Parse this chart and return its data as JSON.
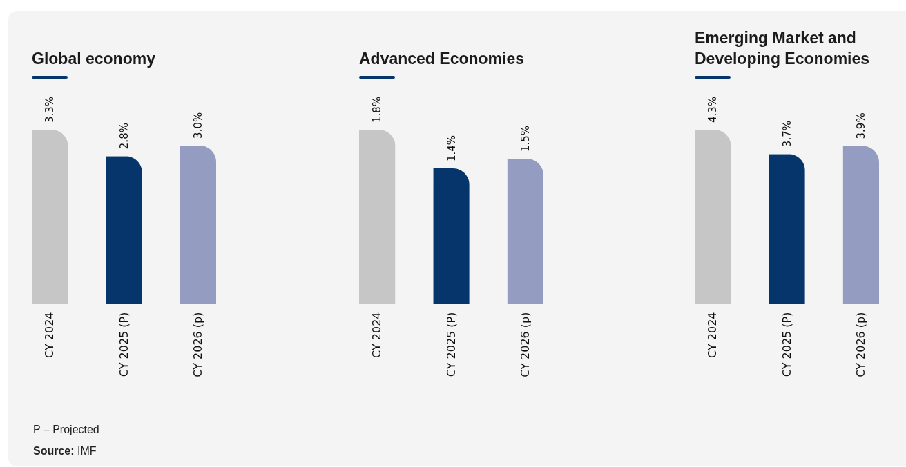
{
  "chart_data": [
    {
      "type": "bar",
      "title": "Global economy",
      "categories": [
        "CY 2024",
        "CY 2025 (P)",
        "CY 2026 (p)"
      ],
      "values": [
        3.3,
        2.8,
        3.0
      ],
      "value_labels": [
        "3.3%",
        "2.8%",
        "3.0%"
      ],
      "colors": [
        "#c6c6c6",
        "#06356b",
        "#949dc1"
      ],
      "annotations": [
        "P – Projected",
        "Source: IMF"
      ]
    },
    {
      "type": "bar",
      "title": "Advanced Economies",
      "categories": [
        "CY 2024",
        "CY 2025 (P)",
        "CY 2026 (p)"
      ],
      "values": [
        1.8,
        1.4,
        1.5
      ],
      "value_labels": [
        "1.8%",
        "1.4%",
        "1.5%"
      ],
      "colors": [
        "#c6c6c6",
        "#06356b",
        "#949dc1"
      ]
    },
    {
      "type": "bar",
      "title": "Emerging Market and Developing Economies",
      "categories": [
        "CY 2024",
        "CY 2025 (P)",
        "CY 2026 (p)"
      ],
      "values": [
        4.3,
        3.7,
        3.9
      ],
      "value_labels": [
        "4.3%",
        "3.7%",
        "3.9%"
      ],
      "colors": [
        "#c6c6c6",
        "#06356b",
        "#949dc1"
      ]
    }
  ]
}
